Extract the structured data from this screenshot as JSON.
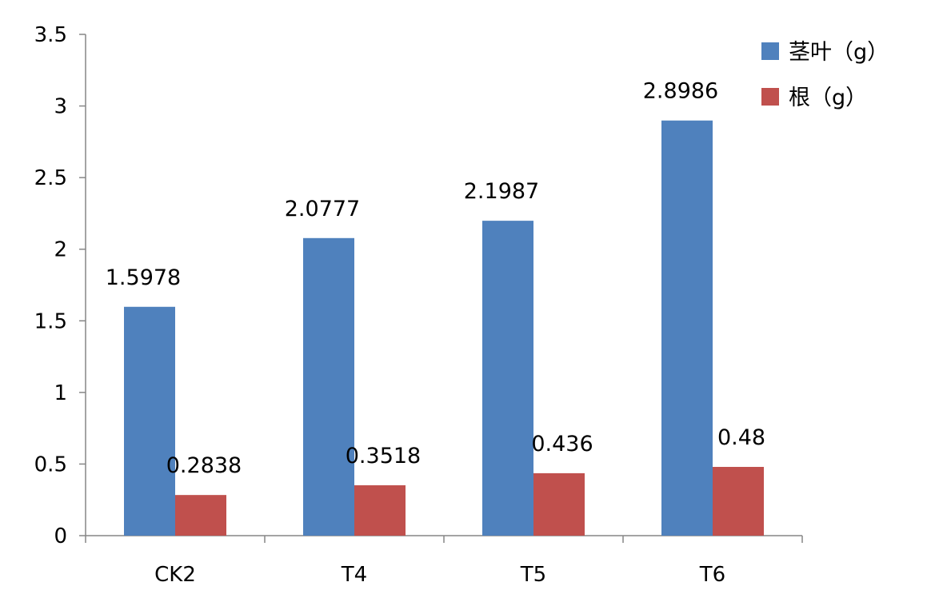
{
  "chart_data": {
    "type": "bar",
    "title": "",
    "xlabel": "",
    "ylabel": "",
    "categories": [
      "CK2",
      "T4",
      "T5",
      "T6"
    ],
    "series": [
      {
        "name": "茎叶（g）",
        "color": "#4f81bd",
        "values": [
          1.5978,
          2.0777,
          2.1987,
          2.8986
        ],
        "labels": [
          "1.5978",
          "2.0777",
          "2.1987",
          "2.8986"
        ]
      },
      {
        "name": "根（g）",
        "color": "#c0504d",
        "values": [
          0.2838,
          0.3518,
          0.436,
          0.48
        ],
        "labels": [
          "0.2838",
          "0.3518",
          "0.436",
          "0.48"
        ]
      }
    ],
    "ylim": [
      0,
      3.5
    ],
    "yticks": [
      0,
      0.5,
      1,
      1.5,
      2,
      2.5,
      3,
      3.5
    ],
    "ytick_labels": [
      "0",
      "0.5",
      "1",
      "1.5",
      "2",
      "2.5",
      "3",
      "3.5"
    ],
    "grid": false,
    "legend_position": "top-right"
  }
}
